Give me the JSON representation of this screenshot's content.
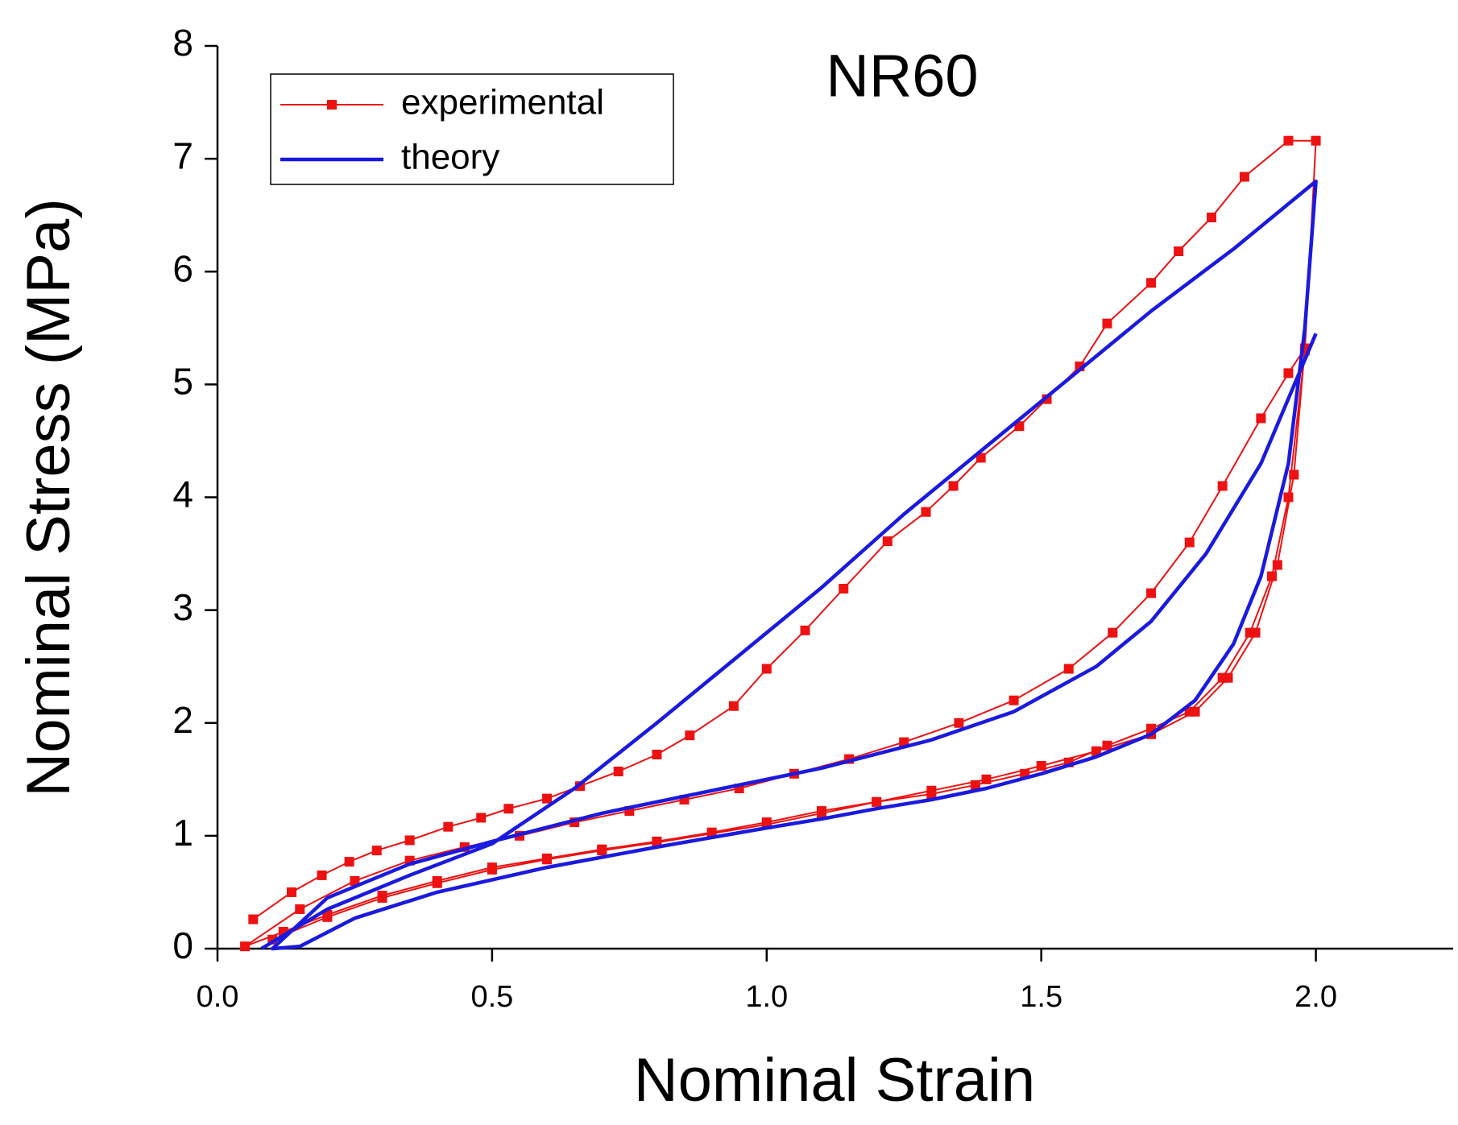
{
  "chart_data": {
    "type": "line",
    "title": "NR60",
    "xlabel": "Nominal Strain",
    "ylabel": "Nominal Stress (MPa)",
    "xlim": [
      0,
      2.25
    ],
    "ylim": [
      0,
      8
    ],
    "xticks": [
      {
        "value": 0,
        "label": "0.0"
      },
      {
        "value": 0.5,
        "label": "0.5"
      },
      {
        "value": 1,
        "label": "1.0"
      },
      {
        "value": 1.5,
        "label": "1.5"
      },
      {
        "value": 2,
        "label": "2.0"
      }
    ],
    "yticks": [
      0,
      1,
      2,
      3,
      4,
      5,
      6,
      7,
      8
    ],
    "legend": "upper left",
    "series": [
      {
        "name": "experimental",
        "color": "#ee1111",
        "marker": "square",
        "x": [
          0.065,
          0.135,
          0.19,
          0.24,
          0.29,
          0.35,
          0.42,
          0.48,
          0.53,
          0.6,
          0.66,
          0.73,
          0.8,
          0.86,
          0.94,
          1.0,
          1.07,
          1.14,
          1.22,
          1.29,
          1.34,
          1.39,
          1.46,
          1.51,
          1.57,
          1.62,
          1.7,
          1.75,
          1.81,
          1.87,
          1.95,
          2.0,
          1.98,
          1.95,
          1.92,
          1.88,
          1.83,
          1.77,
          1.7,
          1.62,
          1.55,
          1.47,
          1.38,
          1.3,
          1.2,
          1.1,
          1.0,
          0.9,
          0.8,
          0.7,
          0.6,
          0.5,
          0.4,
          0.3,
          0.2,
          0.12,
          0.05,
          0.15,
          0.25,
          0.35,
          0.45,
          0.55,
          0.65,
          0.75,
          0.85,
          0.95,
          1.05,
          1.15,
          1.25,
          1.35,
          1.45,
          1.55,
          1.63,
          1.7,
          1.77,
          1.83,
          1.9,
          1.95,
          1.98,
          1.96,
          1.93,
          1.89,
          1.84,
          1.78,
          1.7,
          1.6,
          1.5,
          1.4,
          1.3,
          1.2,
          1.1,
          1.0,
          0.9,
          0.8,
          0.7,
          0.6,
          0.5,
          0.4,
          0.3,
          0.2,
          0.1
        ],
        "values": [
          0.26,
          0.5,
          0.65,
          0.77,
          0.87,
          0.96,
          1.08,
          1.16,
          1.24,
          1.33,
          1.44,
          1.57,
          1.72,
          1.89,
          2.15,
          2.48,
          2.82,
          3.19,
          3.61,
          3.87,
          4.1,
          4.35,
          4.63,
          4.87,
          5.16,
          5.54,
          5.9,
          6.18,
          6.48,
          6.84,
          7.16,
          7.16,
          5.3,
          4.0,
          3.3,
          2.8,
          2.4,
          2.1,
          1.95,
          1.8,
          1.65,
          1.55,
          1.45,
          1.37,
          1.3,
          1.22,
          1.12,
          1.03,
          0.95,
          0.88,
          0.8,
          0.72,
          0.6,
          0.47,
          0.3,
          0.15,
          0.02,
          0.35,
          0.6,
          0.78,
          0.9,
          1.0,
          1.12,
          1.22,
          1.32,
          1.42,
          1.55,
          1.68,
          1.83,
          2.0,
          2.2,
          2.48,
          2.8,
          3.15,
          3.6,
          4.1,
          4.7,
          5.1,
          5.32,
          4.2,
          3.4,
          2.8,
          2.4,
          2.1,
          1.9,
          1.75,
          1.62,
          1.5,
          1.4,
          1.3,
          1.2,
          1.1,
          1.02,
          0.94,
          0.87,
          0.79,
          0.7,
          0.58,
          0.45,
          0.28,
          0.08
        ]
      },
      {
        "name": "theory",
        "color": "#1a1adf",
        "marker": "none",
        "x": [
          0.08,
          0.2,
          0.35,
          0.5,
          0.65,
          0.8,
          0.95,
          1.1,
          1.25,
          1.4,
          1.55,
          1.7,
          1.85,
          2.0,
          1.98,
          1.95,
          1.9,
          1.85,
          1.78,
          1.7,
          1.6,
          1.5,
          1.4,
          1.3,
          1.2,
          1.1,
          1.0,
          0.8,
          0.6,
          0.4,
          0.25,
          0.15,
          0.1,
          0.2,
          0.35,
          0.5,
          0.7,
          0.9,
          1.1,
          1.3,
          1.45,
          1.6,
          1.7,
          1.8,
          1.9,
          2.0
        ],
        "values": [
          0,
          0.35,
          0.65,
          0.93,
          1.42,
          2.0,
          2.6,
          3.2,
          3.85,
          4.45,
          5.05,
          5.65,
          6.2,
          6.8,
          5.5,
          4.3,
          3.3,
          2.7,
          2.2,
          1.9,
          1.7,
          1.55,
          1.42,
          1.32,
          1.24,
          1.15,
          1.07,
          0.9,
          0.72,
          0.5,
          0.27,
          0.02,
          0,
          0.45,
          0.75,
          0.95,
          1.2,
          1.4,
          1.6,
          1.85,
          2.1,
          2.5,
          2.9,
          3.5,
          4.3,
          5.45
        ]
      }
    ]
  }
}
